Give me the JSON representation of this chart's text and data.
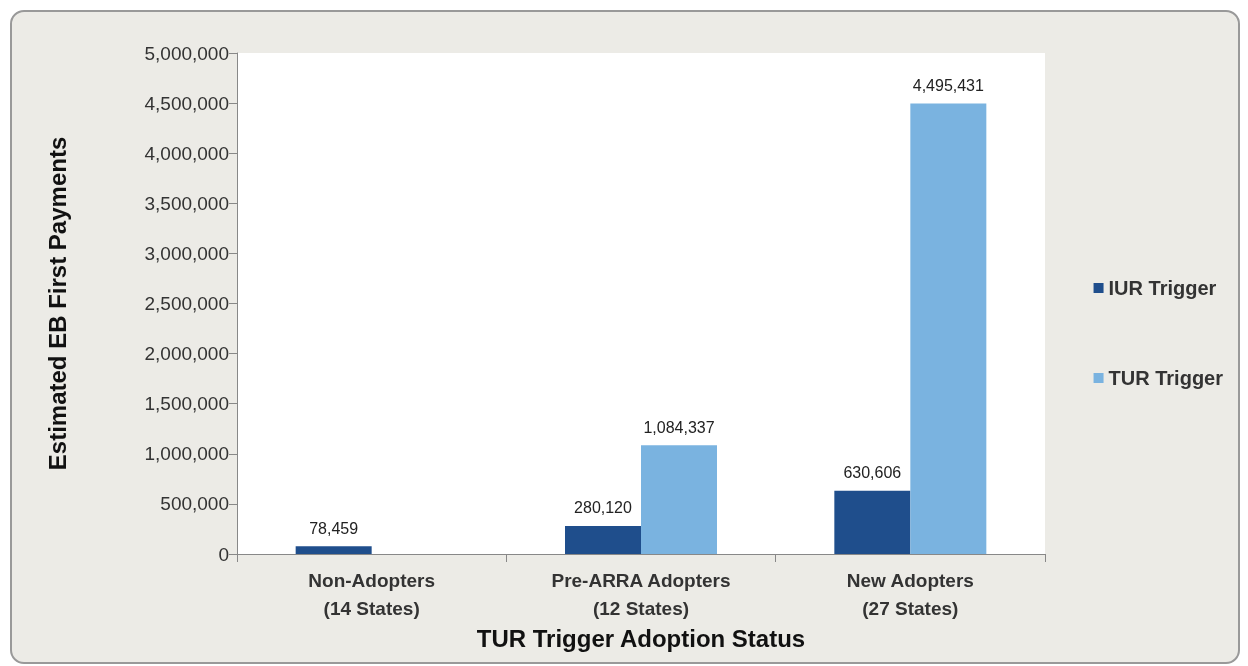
{
  "chart_data": {
    "type": "bar",
    "xlabel": "TUR Trigger Adoption Status",
    "ylabel": "Estimated EB First Payments",
    "categories": [
      "Non-Adopters\n(14 States)",
      "Pre-ARRA Adopters\n(12 States)",
      "New Adopters\n(27 States)"
    ],
    "series": [
      {
        "name": "IUR Trigger",
        "color": "#1f4e8c",
        "values": [
          78459,
          280120,
          630606
        ],
        "value_labels": [
          "78,459",
          "280,120",
          "630,606"
        ]
      },
      {
        "name": "TUR Trigger",
        "color": "#7ab3e0",
        "values": [
          null,
          1084337,
          4495431
        ],
        "value_labels": [
          null,
          "1,084,337",
          "4,495,431"
        ]
      }
    ],
    "ylim": [
      0,
      5000000
    ],
    "yticks": [
      0,
      {
        "value": 500000,
        "label": "500,000"
      },
      {
        "value": 1000000,
        "label": "1,000,000"
      },
      {
        "value": 1500000,
        "label": "1,500,000"
      },
      {
        "value": 2000000,
        "label": "2,000,000"
      },
      {
        "value": 2500000,
        "label": "2,500,000"
      },
      {
        "value": 3000000,
        "label": "3,000,000"
      },
      {
        "value": 3500000,
        "label": "3,500,000"
      },
      {
        "value": 4000000,
        "label": "4,000,000"
      },
      {
        "value": 4500000,
        "label": "4,500,000"
      },
      {
        "value": 5000000,
        "label": "5,000,000"
      }
    ],
    "grid": false,
    "legend": "right"
  }
}
